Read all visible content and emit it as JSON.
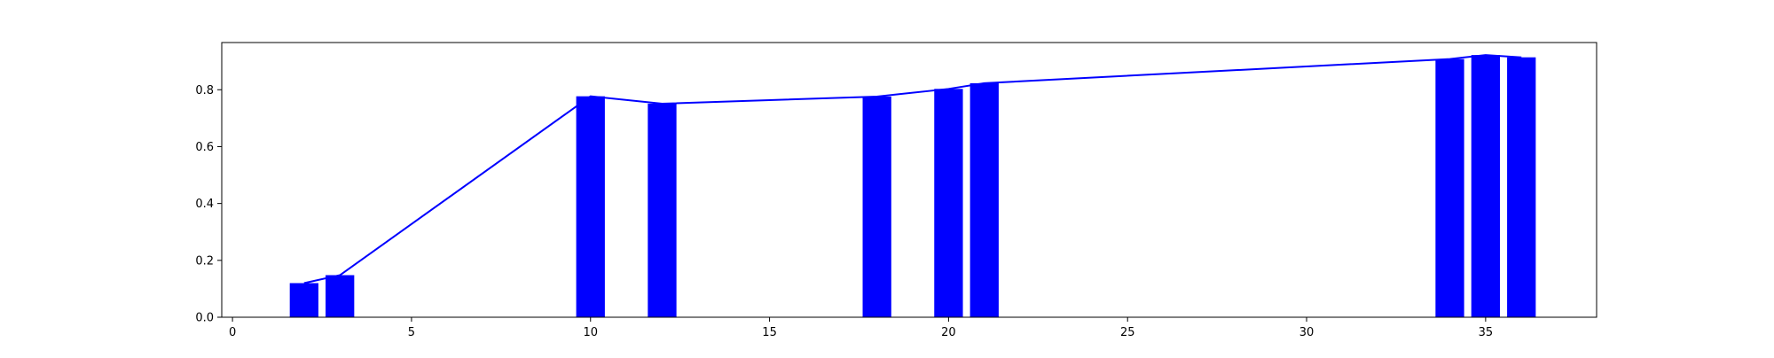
{
  "chart_data": {
    "type": "bar",
    "title": "",
    "xlabel": "",
    "ylabel": "",
    "xlim": [
      -0.3,
      38.1
    ],
    "ylim": [
      0,
      0.966
    ],
    "xticks": [
      0,
      5,
      10,
      15,
      20,
      25,
      30,
      35
    ],
    "xtick_labels": [
      "0",
      "5",
      "10",
      "15",
      "20",
      "25",
      "30",
      "35"
    ],
    "yticks": [
      0.0,
      0.2,
      0.4,
      0.6,
      0.8
    ],
    "ytick_labels": [
      "0.0",
      "0.2",
      "0.4",
      "0.6",
      "0.8"
    ],
    "grid": false,
    "legend": "none",
    "bar_width": 0.8,
    "x": [
      2,
      3,
      10,
      12,
      18,
      20,
      21,
      34,
      35,
      36
    ],
    "values": [
      0.12,
      0.148,
      0.777,
      0.751,
      0.776,
      0.803,
      0.823,
      0.908,
      0.922,
      0.914
    ],
    "series": [
      {
        "kind": "bar",
        "color": "#0000ff"
      },
      {
        "kind": "line",
        "color": "#0000ff"
      }
    ]
  }
}
